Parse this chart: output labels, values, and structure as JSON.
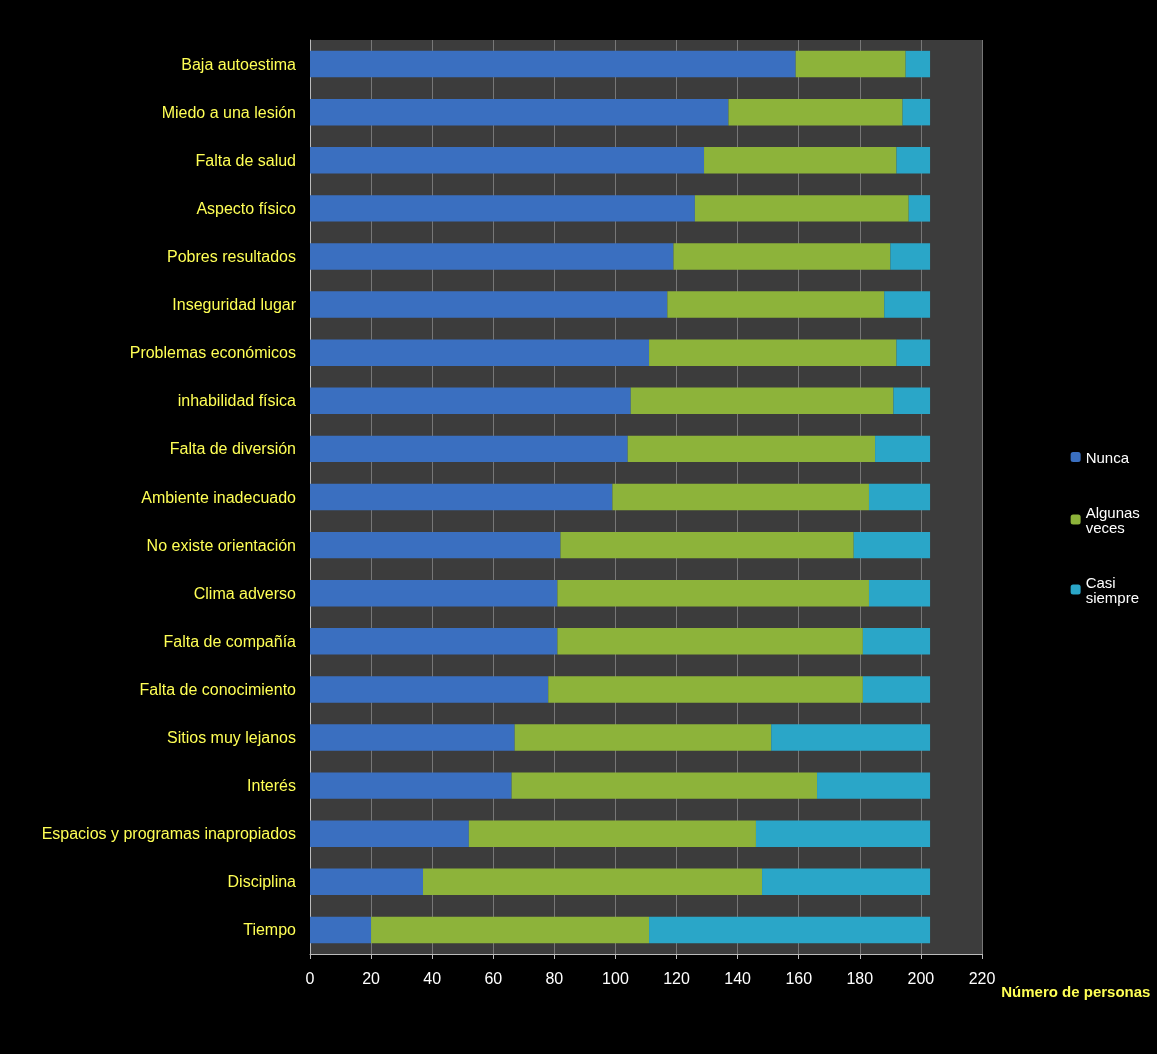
{
  "chart_data": {
    "type": "bar",
    "orientation": "horizontal",
    "stacked": true,
    "xlabel": "Número de personas",
    "categories": [
      "Baja autoestima",
      "Miedo a una lesión",
      "Falta de salud",
      "Aspecto físico",
      "Pobres resultados",
      "Inseguridad lugar",
      "Problemas económicos",
      "inhabilidad física",
      "Falta de diversión",
      "Ambiente inadecuado",
      "No existe orientación",
      "Clima adverso",
      "Falta de compañía",
      "Falta de conocimiento",
      "Sitios muy lejanos",
      "Interés",
      "Espacios y programas inapropiados",
      "Disciplina",
      "Tiempo"
    ],
    "series": [
      {
        "name": "Nunca",
        "color": "#3a6fc0",
        "values": [
          159,
          137,
          129,
          126,
          119,
          117,
          111,
          105,
          104,
          99,
          82,
          81,
          81,
          78,
          67,
          66,
          52,
          37,
          20
        ]
      },
      {
        "name": "Algunas veces",
        "color": "#8db33a",
        "values": [
          36,
          57,
          63,
          70,
          71,
          71,
          81,
          86,
          81,
          84,
          96,
          102,
          100,
          103,
          84,
          100,
          94,
          111,
          91
        ]
      },
      {
        "name": "Casi siempre",
        "color": "#2aa6c8",
        "values": [
          8,
          9,
          11,
          7,
          13,
          15,
          11,
          12,
          18,
          20,
          25,
          20,
          22,
          22,
          52,
          37,
          57,
          55,
          92
        ]
      }
    ],
    "xlim": [
      0,
      220
    ],
    "xticks": [
      0,
      20,
      40,
      60,
      80,
      100,
      120,
      140,
      160,
      180,
      200,
      220
    ],
    "grid": "x",
    "legend": "right"
  }
}
